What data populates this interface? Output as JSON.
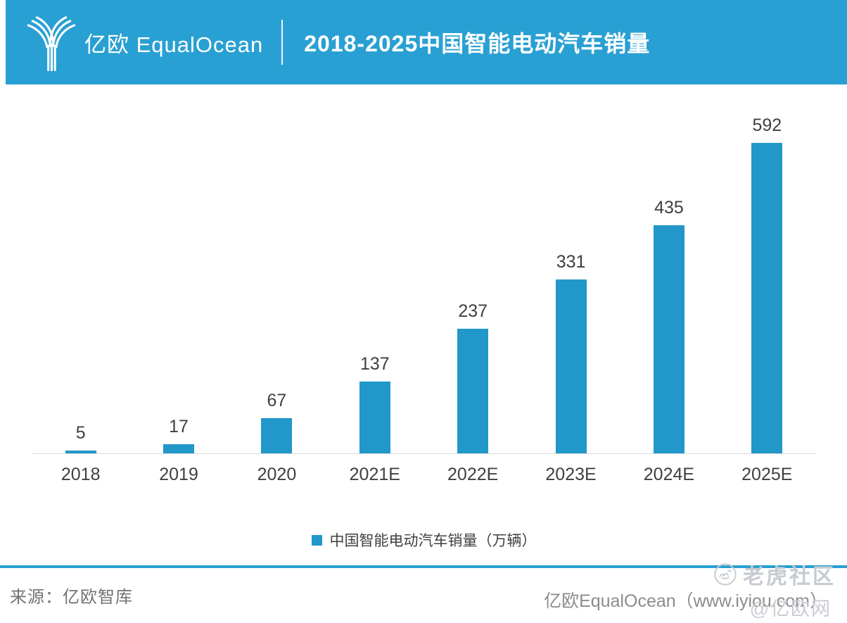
{
  "header": {
    "logo_text": "亿欧 EqualOcean",
    "title": "2018-2025中国智能电动汽车销量"
  },
  "chart_data": {
    "type": "bar",
    "title": "2018-2025中国智能电动汽车销量",
    "categories": [
      "2018",
      "2019",
      "2020",
      "2021E",
      "2022E",
      "2023E",
      "2024E",
      "2025E"
    ],
    "values": [
      5,
      17,
      67,
      137,
      237,
      331,
      435,
      592
    ],
    "series_name": "中国智能电动汽车销量（万辆）",
    "unit": "万辆",
    "value_labels_shown": true,
    "xlabel": "",
    "ylabel": "",
    "ylim": [
      0,
      650
    ],
    "grid": false,
    "legend_position": "bottom",
    "bar_color": "#2197ca"
  },
  "legend": {
    "label": "中国智能电动汽车销量（万辆）"
  },
  "footer": {
    "source": "来源：亿欧智库",
    "site": "亿欧EqualOcean（www.iyiou.com）"
  },
  "watermark": {
    "community": "老虎社区",
    "handle": "@亿欧网"
  },
  "colors": {
    "brand_blue": "#29a0d3",
    "bar_blue": "#2197ca",
    "axis_gray": "#d9d9d9",
    "label_gray": "#404040"
  }
}
